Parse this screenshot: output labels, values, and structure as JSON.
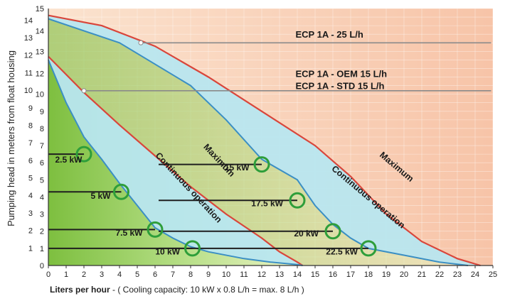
{
  "chart_data": {
    "type": "line",
    "xlabel": "Liters per hour",
    "xlabel_note": " -  ( Cooling capacity: 10 kW x 0.8 L/h = max. 8 L/h )",
    "ylabel": "Pumping head in meters from float housing",
    "xlim": [
      0,
      25
    ],
    "ylim": [
      0,
      15
    ],
    "x_ticks": [
      "0",
      "1",
      "2",
      "3",
      "4",
      "5",
      "6",
      "7",
      "8",
      "9",
      "10",
      "11",
      "12",
      "13",
      "14",
      "15",
      "16",
      "17",
      "18",
      "19",
      "20",
      "21",
      "22",
      "23",
      "24",
      "25"
    ],
    "y_ticks_right": [
      "0",
      "1",
      "2",
      "3",
      "4",
      "5",
      "6",
      "7",
      "8",
      "9",
      "10",
      "12",
      "13",
      "14",
      "15"
    ],
    "y_ticks_left": [
      "1",
      "2",
      "3",
      "4",
      "5",
      "6",
      "7",
      "8",
      "9",
      "10",
      "11",
      "12",
      "13",
      "14"
    ],
    "grid": true,
    "series": [
      {
        "name": "ECP 1A - 25 L/h",
        "x": [
          0,
          3,
          6,
          9,
          12,
          15,
          17,
          19,
          21,
          23,
          24.3
        ],
        "y": [
          14.6,
          14.0,
          12.8,
          11.0,
          9.0,
          7.0,
          5.2,
          3.0,
          1.4,
          0.4,
          0
        ]
      },
      {
        "name": "ECP 1A - OEM 15 L/h",
        "x": [
          0,
          2,
          4,
          6,
          8,
          10,
          12,
          13,
          14,
          14.3
        ],
        "y": [
          12.2,
          10.1,
          8.2,
          6.4,
          4.6,
          3.0,
          1.6,
          0.8,
          0.2,
          0
        ]
      },
      {
        "name": "ECP 1A - STD 15 L/h",
        "x": [
          0,
          1,
          2,
          3,
          4,
          5,
          6,
          7,
          8,
          9,
          11,
          12.5,
          14,
          14.3
        ],
        "y": [
          12.0,
          9.5,
          7.5,
          6.2,
          4.8,
          3.5,
          2.2,
          1.6,
          1.1,
          0.8,
          0.4,
          0.2,
          0.05,
          0
        ]
      },
      {
        "name": "Continuous operation 25 L/h",
        "x": [
          0,
          4,
          8,
          10,
          12,
          14,
          15,
          16,
          17,
          18,
          20,
          22,
          23.6
        ],
        "y": [
          14.4,
          13.0,
          10.5,
          8.5,
          6.2,
          5.0,
          3.5,
          2.4,
          1.6,
          1.0,
          0.6,
          0.2,
          0
        ]
      }
    ],
    "cooling_points": [
      {
        "label": "2.5 kW",
        "x": 2.0,
        "y": 6.5
      },
      {
        "label": "5 kW",
        "x": 4.1,
        "y": 4.3
      },
      {
        "label": "7.5 kW",
        "x": 6.0,
        "y": 2.1
      },
      {
        "label": "10 kW",
        "x": 8.1,
        "y": 1.0
      },
      {
        "label": "15 kW",
        "x": 12.0,
        "y": 5.9
      },
      {
        "label": "17.5 kW",
        "x": 14.0,
        "y": 3.8
      },
      {
        "label": "20 kW",
        "x": 16.0,
        "y": 2.0
      },
      {
        "label": "22.5 kW",
        "x": 18.0,
        "y": 1.0
      }
    ],
    "band_labels": [
      "Continuous operation",
      "Maximum",
      "Continuous operation",
      "Maximum"
    ],
    "series_labels": [
      "ECP 1A - 25 L/h",
      "ECP 1A - OEM 15 L/h",
      "ECP 1A - STD 15 L/h"
    ],
    "colors": {
      "max_zone": "#f6c2ae",
      "cont_zone": "#b8e6ef",
      "green_zone": "#9fd467",
      "curve_red": "#d9463b",
      "curve_blue": "#3b8fc4",
      "circle": "#2e9e3a"
    }
  }
}
